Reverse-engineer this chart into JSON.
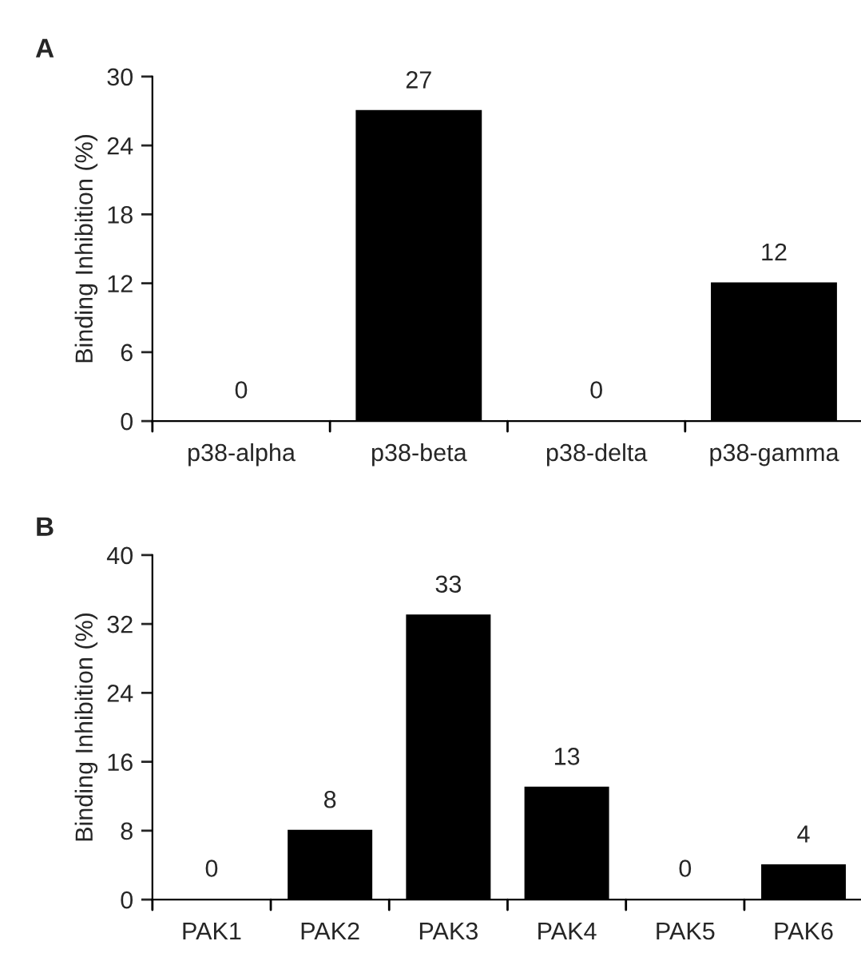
{
  "chart_data": [
    {
      "type": "bar",
      "title": "A",
      "ylabel": "Binding Inhibition (%)",
      "categories": [
        "p38-alpha",
        "p38-beta",
        "p38-delta",
        "p38-gamma"
      ],
      "series": [
        {
          "color": "#000000",
          "values": [
            0,
            27,
            0,
            12
          ]
        }
      ],
      "ylim": [
        0,
        30
      ],
      "yticks": [
        0,
        6,
        12,
        18,
        24,
        30
      ],
      "data_labels": true,
      "grid": false,
      "legend": false
    },
    {
      "type": "bar",
      "title": "B",
      "ylabel": "Binding Inhibition (%)",
      "categories": [
        "PAK1",
        "PAK2",
        "PAK3",
        "PAK4",
        "PAK5",
        "PAK6"
      ],
      "series": [
        {
          "color": "#000000",
          "values": [
            0,
            8,
            33,
            13,
            0,
            4
          ]
        }
      ],
      "ylim": [
        0,
        40
      ],
      "yticks": [
        0,
        8,
        16,
        24,
        32,
        40
      ],
      "data_labels": true,
      "grid": false,
      "legend": false
    }
  ]
}
